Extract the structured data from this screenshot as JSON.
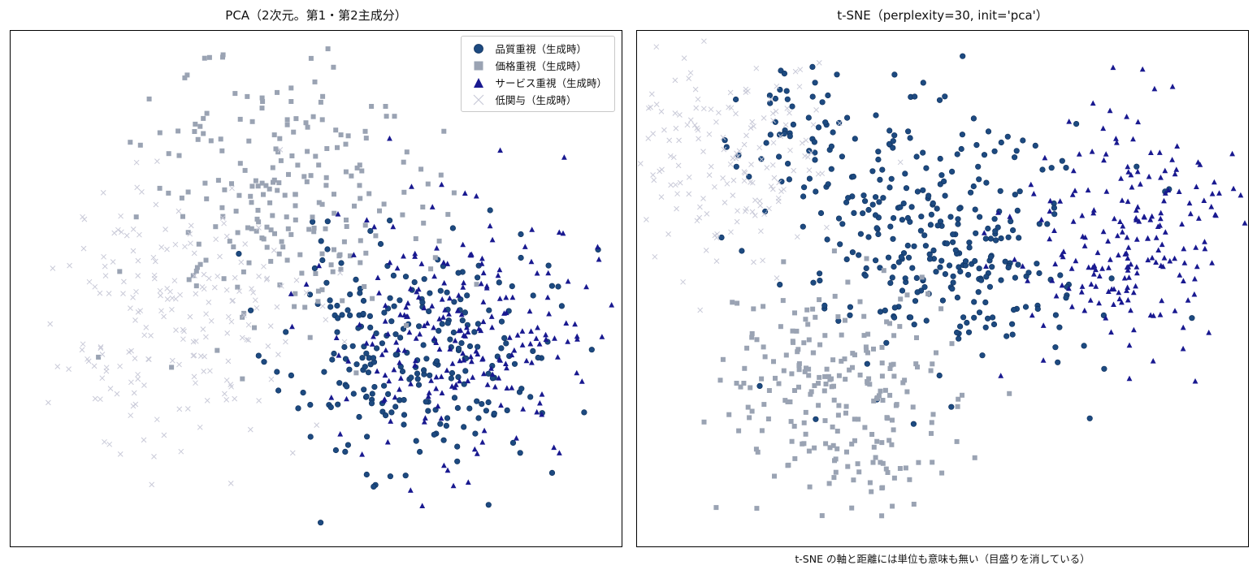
{
  "legend_ui": {
    "placement": "top-right"
  },
  "colors": {
    "quality": "#1d4a80",
    "price": "#9aa3b3",
    "service": "#191990",
    "low": "#c9cad8"
  },
  "chart_data": [
    {
      "type": "scatter",
      "title": "PCA（2次元。第1・第2主成分）",
      "xlabel": "",
      "ylabel": "",
      "ticks": "none",
      "grid": false,
      "xlim": [
        -4.5,
        4.5
      ],
      "ylim": [
        -3.5,
        3.5
      ],
      "legend": {
        "placement": "top-right",
        "entries": [
          "品質重視（生成時）",
          "価格重視（生成時）",
          "サービス重視（生成時）",
          "低関与（生成時）"
        ]
      },
      "series": [
        {
          "key": "quality",
          "name": "品質重視（生成時）",
          "marker": "circle",
          "color": "#1d4a80",
          "clusters": [
            {
              "n": 250,
              "center": [
                1.4,
                -0.9
              ],
              "spread": [
                0.95,
                0.8
              ],
              "seed": 11
            }
          ]
        },
        {
          "key": "price",
          "name": "価格重視（生成時）",
          "marker": "square",
          "color": "#9aa3b3",
          "clusters": [
            {
              "n": 230,
              "center": [
                -0.5,
                1.2
              ],
              "spread": [
                1.05,
                0.95
              ],
              "seed": 23
            }
          ]
        },
        {
          "key": "service",
          "name": "サービス重視（生成時）",
          "marker": "triangle",
          "color": "#191990",
          "clusters": [
            {
              "n": 230,
              "center": [
                2.2,
                -0.6
              ],
              "spread": [
                0.95,
                0.85
              ],
              "seed": 37
            }
          ]
        },
        {
          "key": "low",
          "name": "低関与（生成時）",
          "marker": "x",
          "color": "#c9cad8",
          "clusters": [
            {
              "n": 200,
              "center": [
                -2.2,
                -0.5
              ],
              "spread": [
                0.9,
                0.9
              ],
              "seed": 51
            }
          ]
        }
      ]
    },
    {
      "type": "scatter",
      "title": "t-SNE（perplexity=30, init='pca'）",
      "xlabel": "t-SNE の軸と距離には単位も意味も無い（目盛りを消している）",
      "ylabel": "",
      "ticks": "none",
      "grid": false,
      "xlim": [
        -50,
        50
      ],
      "ylim": [
        -50,
        50
      ],
      "series": [
        {
          "key": "quality",
          "name": "品質重視（生成時）",
          "marker": "circle",
          "color": "#1d4a80",
          "clusters": [
            {
              "n": 300,
              "center": [
                0,
                10
              ],
              "spread": [
                12,
                12
              ],
              "seed": 71
            },
            {
              "n": 60,
              "center": [
                -22,
                30
              ],
              "spread": [
                7,
                6
              ],
              "seed": 73
            }
          ]
        },
        {
          "key": "price",
          "name": "価格重視（生成時）",
          "marker": "square",
          "color": "#9aa3b3",
          "clusters": [
            {
              "n": 240,
              "center": [
                -18,
                -20
              ],
              "spread": [
                10,
                12
              ],
              "seed": 83
            }
          ]
        },
        {
          "key": "service",
          "name": "サービス重視（生成時）",
          "marker": "triangle",
          "color": "#191990",
          "clusters": [
            {
              "n": 210,
              "center": [
                30,
                10
              ],
              "spread": [
                9,
                12
              ],
              "seed": 97
            }
          ]
        },
        {
          "key": "low",
          "name": "低関与（生成時）",
          "marker": "x",
          "color": "#c9cad8",
          "clusters": [
            {
              "n": 180,
              "center": [
                -36,
                25
              ],
              "spread": [
                9,
                10
              ],
              "seed": 101
            }
          ]
        }
      ]
    }
  ]
}
